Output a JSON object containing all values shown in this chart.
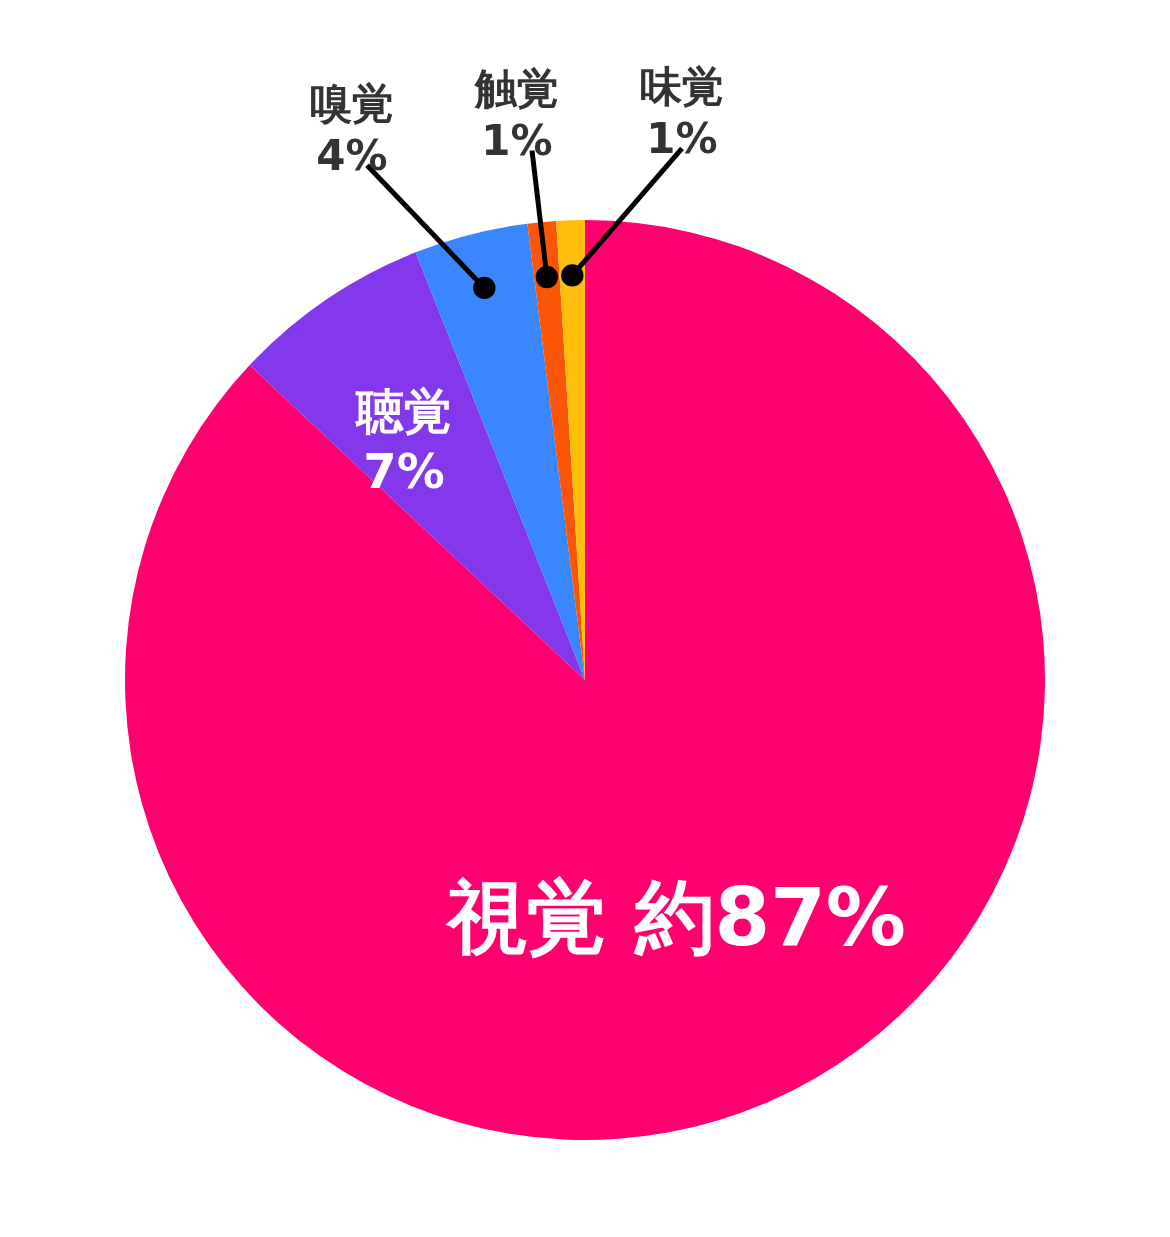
{
  "chart_data": {
    "type": "pie",
    "categories": [
      "視覚",
      "聴覚",
      "嗅覚",
      "触覚",
      "味覚"
    ],
    "values": [
      87,
      7,
      4,
      1,
      1
    ],
    "colors": [
      "#ff006e",
      "#8338ec",
      "#3a86ff",
      "#fb5607",
      "#ffbe0b"
    ],
    "value_labels": [
      "約87%",
      "7%",
      "4%",
      "1%",
      "1%"
    ]
  }
}
